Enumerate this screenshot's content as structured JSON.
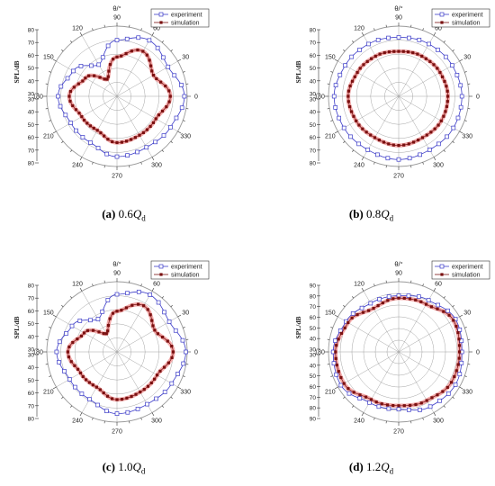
{
  "colors": {
    "experiment": "#3b3bc8",
    "simulation": "#7a1010",
    "band": "#f2a9a9",
    "grid": "#9a9a9a"
  },
  "chart_data": [
    {
      "type": "scatter",
      "subtype": "polar",
      "panel": "(a)",
      "caption_value": "0.6",
      "caption_var": "Q",
      "caption_sub": "d",
      "theta_label": "θ/°",
      "r_label": "SPL/dB",
      "r_ticks": [
        30,
        40,
        50,
        60,
        70,
        80
      ],
      "r_range": [
        30,
        80
      ],
      "angle_ticks": [
        "0",
        "30",
        "60",
        "90",
        "120",
        "150",
        "180",
        "210",
        "240",
        "270",
        "300",
        "330"
      ],
      "legend": [
        "experiment",
        "simulation"
      ],
      "legend_position": "top-right",
      "series": [
        {
          "name": "experiment",
          "marker": "open-square",
          "key": [
            [
              0,
              78
            ],
            [
              30,
              72
            ],
            [
              60,
              76
            ],
            [
              90,
              70
            ],
            [
              120,
              56
            ],
            [
              150,
              66
            ],
            [
              180,
              72
            ],
            [
              210,
              68
            ],
            [
              240,
              68
            ],
            [
              270,
              73
            ],
            [
              300,
              72
            ],
            [
              330,
              74
            ]
          ]
        },
        {
          "name": "simulation",
          "marker": "filled-square",
          "key": [
            [
              0,
              68
            ],
            [
              30,
              60
            ],
            [
              60,
              67
            ],
            [
              90,
              58
            ],
            [
              120,
              44
            ],
            [
              150,
              56
            ],
            [
              180,
              64
            ],
            [
              210,
              59
            ],
            [
              240,
              58
            ],
            [
              270,
              63
            ],
            [
              300,
              62
            ],
            [
              330,
              62
            ]
          ]
        }
      ]
    },
    {
      "type": "scatter",
      "subtype": "polar",
      "panel": "(b)",
      "caption_value": "0.8",
      "caption_var": "Q",
      "caption_sub": "d",
      "theta_label": "θ/°",
      "r_label": "SPL/dB",
      "r_ticks": [
        30,
        40,
        50,
        60,
        70,
        80
      ],
      "r_range": [
        30,
        80
      ],
      "angle_ticks": [
        "0",
        "30",
        "60",
        "90",
        "120",
        "150",
        "180",
        "210",
        "240",
        "270",
        "300",
        "330"
      ],
      "legend": [
        "experiment",
        "simulation"
      ],
      "legend_position": "top-right",
      "series": [
        {
          "name": "experiment",
          "marker": "open-square",
          "key": [
            [
              0,
              75
            ],
            [
              30,
              74
            ],
            [
              60,
              73
            ],
            [
              90,
              72
            ],
            [
              120,
              73
            ],
            [
              150,
              74
            ],
            [
              180,
              76
            ],
            [
              210,
              75
            ],
            [
              240,
              74
            ],
            [
              270,
              75
            ],
            [
              300,
              74
            ],
            [
              330,
              75
            ]
          ]
        },
        {
          "name": "simulation",
          "marker": "filled-square",
          "key": [
            [
              0,
              65
            ],
            [
              30,
              64
            ],
            [
              60,
              63
            ],
            [
              90,
              62
            ],
            [
              120,
              63
            ],
            [
              150,
              64
            ],
            [
              180,
              66
            ],
            [
              210,
              65
            ],
            [
              240,
              64
            ],
            [
              270,
              65
            ],
            [
              300,
              64
            ],
            [
              330,
              65
            ]
          ]
        }
      ]
    },
    {
      "type": "scatter",
      "subtype": "polar",
      "panel": "(c)",
      "caption_value": "1.0",
      "caption_var": "Q",
      "caption_sub": "d",
      "theta_label": "θ/°",
      "r_label": "SPL/dB",
      "r_ticks": [
        30,
        40,
        50,
        60,
        70,
        80
      ],
      "r_range": [
        30,
        80
      ],
      "angle_ticks": [
        "0",
        "30",
        "60",
        "90",
        "120",
        "150",
        "180",
        "210",
        "240",
        "270",
        "300",
        "330"
      ],
      "legend": [
        "experiment",
        "simulation"
      ],
      "legend_position": "top-right",
      "series": [
        {
          "name": "experiment",
          "marker": "open-square",
          "key": [
            [
              0,
              79
            ],
            [
              30,
              73
            ],
            [
              60,
              77
            ],
            [
              90,
              71
            ],
            [
              120,
              57
            ],
            [
              150,
              67
            ],
            [
              180,
              73
            ],
            [
              210,
              69
            ],
            [
              240,
              69
            ],
            [
              270,
              74
            ],
            [
              300,
              73
            ],
            [
              330,
              75
            ]
          ]
        },
        {
          "name": "simulation",
          "marker": "filled-square",
          "key": [
            [
              0,
              70
            ],
            [
              30,
              61
            ],
            [
              60,
              68
            ],
            [
              90,
              59
            ],
            [
              120,
              45
            ],
            [
              150,
              57
            ],
            [
              180,
              65
            ],
            [
              210,
              60
            ],
            [
              240,
              59
            ],
            [
              270,
              64
            ],
            [
              300,
              63
            ],
            [
              330,
              63
            ]
          ]
        }
      ]
    },
    {
      "type": "scatter",
      "subtype": "polar",
      "panel": "(d)",
      "caption_value": "1.2",
      "caption_var": "Q",
      "caption_sub": "d",
      "theta_label": "θ/°",
      "r_label": "SPL/dB",
      "r_ticks": [
        30,
        40,
        50,
        60,
        70,
        80,
        90
      ],
      "r_range": [
        30,
        90
      ],
      "angle_ticks": [
        "0",
        "30",
        "60",
        "90",
        "120",
        "150",
        "180",
        "210",
        "240",
        "270",
        "300",
        "330"
      ],
      "legend": [
        "experiment",
        "simulation"
      ],
      "legend_position": "top-right",
      "series": [
        {
          "name": "experiment",
          "marker": "open-square",
          "key": [
            [
              0,
              84
            ],
            [
              30,
              86
            ],
            [
              60,
              81
            ],
            [
              90,
              78
            ],
            [
              120,
              78
            ],
            [
              150,
              82
            ],
            [
              180,
              86
            ],
            [
              210,
              87
            ],
            [
              240,
              80
            ],
            [
              270,
              79
            ],
            [
              300,
              84
            ],
            [
              330,
              86
            ]
          ]
        },
        {
          "name": "simulation",
          "marker": "filled-square",
          "key": [
            [
              0,
              82
            ],
            [
              30,
              84
            ],
            [
              60,
              77
            ],
            [
              90,
              76
            ],
            [
              120,
              73
            ],
            [
              150,
              80
            ],
            [
              180,
              84
            ],
            [
              210,
              84
            ],
            [
              240,
              77
            ],
            [
              270,
              76
            ],
            [
              300,
              78
            ],
            [
              330,
              82
            ]
          ]
        }
      ]
    }
  ]
}
